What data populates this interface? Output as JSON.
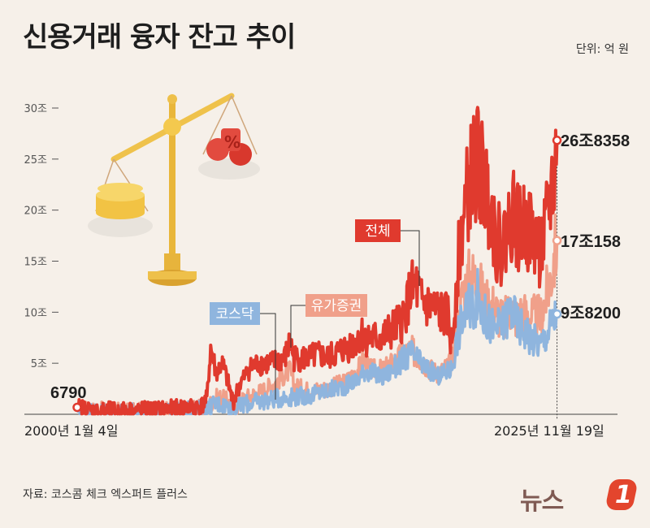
{
  "title": "신용거래 융자 잔고 추이",
  "unit": "단위: 억 원",
  "source": "자료: 코스콤 체크 엑스퍼트 플러스",
  "logo": {
    "text": "뉴스",
    "badge": "1"
  },
  "colors": {
    "total": "#e03a2e",
    "securities": "#f0a08a",
    "kosdaq": "#8fb5de",
    "background": "#f6f0e9"
  },
  "chart_data": {
    "type": "line",
    "x_start_label": "2000년 1월 4일",
    "x_end_label": "2025년 11월 19일",
    "xlim": [
      2000.0,
      2025.9
    ],
    "ylim": [
      0,
      30
    ],
    "y_ticks": [
      {
        "value": 5,
        "label": "5조"
      },
      {
        "value": 10,
        "label": "10조"
      },
      {
        "value": 15,
        "label": "15조"
      },
      {
        "value": 20,
        "label": "20조"
      },
      {
        "value": 25,
        "label": "25조"
      },
      {
        "value": 30,
        "label": "30조"
      }
    ],
    "start_annotation": {
      "value": 0.679,
      "label": "6790"
    },
    "series": [
      {
        "name": "유가증권",
        "key": "securities",
        "end_label": "17조158",
        "points": [
          [
            2000.0,
            0.4
          ],
          [
            2003.0,
            0.2
          ],
          [
            2005.0,
            0.3
          ],
          [
            2007.0,
            0.6
          ],
          [
            2007.3,
            1.3
          ],
          [
            2007.6,
            1.7
          ],
          [
            2008.0,
            1.4
          ],
          [
            2008.5,
            0.6
          ],
          [
            2009.0,
            1.5
          ],
          [
            2010.0,
            2.3
          ],
          [
            2011.0,
            3.5
          ],
          [
            2011.5,
            4.3
          ],
          [
            2011.7,
            2.8
          ],
          [
            2012.5,
            2.3
          ],
          [
            2013.5,
            2.5
          ],
          [
            2014.5,
            3.2
          ],
          [
            2015.2,
            4.5
          ],
          [
            2015.5,
            5.5
          ],
          [
            2015.7,
            4.4
          ],
          [
            2016.5,
            4.3
          ],
          [
            2017.5,
            5.7
          ],
          [
            2018.0,
            6.3
          ],
          [
            2018.5,
            5.5
          ],
          [
            2019.0,
            4.5
          ],
          [
            2019.5,
            4.0
          ],
          [
            2020.2,
            5.0
          ],
          [
            2020.5,
            8.0
          ],
          [
            2020.8,
            12.0
          ],
          [
            2021.2,
            13.5
          ],
          [
            2021.6,
            13.0
          ],
          [
            2022.0,
            11.0
          ],
          [
            2022.5,
            10.5
          ],
          [
            2023.0,
            9.0
          ],
          [
            2023.4,
            10.5
          ],
          [
            2023.7,
            9.5
          ],
          [
            2024.0,
            10.0
          ],
          [
            2024.5,
            9.5
          ],
          [
            2025.0,
            9.5
          ],
          [
            2025.5,
            13.0
          ],
          [
            2025.88,
            17.0158
          ]
        ]
      },
      {
        "name": "코스닥",
        "key": "kosdaq",
        "end_label": "9조8200",
        "points": [
          [
            2000.0,
            0.3
          ],
          [
            2003.0,
            0.15
          ],
          [
            2005.0,
            0.2
          ],
          [
            2007.0,
            0.5
          ],
          [
            2007.3,
            0.9
          ],
          [
            2007.6,
            1.0
          ],
          [
            2008.0,
            0.9
          ],
          [
            2008.5,
            0.4
          ],
          [
            2009.0,
            1.0
          ],
          [
            2010.0,
            1.3
          ],
          [
            2011.0,
            1.6
          ],
          [
            2011.5,
            1.7
          ],
          [
            2012.5,
            1.8
          ],
          [
            2013.5,
            2.3
          ],
          [
            2014.5,
            2.8
          ],
          [
            2015.2,
            3.5
          ],
          [
            2015.5,
            4.3
          ],
          [
            2016.0,
            4.0
          ],
          [
            2016.5,
            3.6
          ],
          [
            2017.5,
            5.2
          ],
          [
            2018.0,
            6.0
          ],
          [
            2018.5,
            5.0
          ],
          [
            2019.0,
            4.3
          ],
          [
            2019.5,
            3.7
          ],
          [
            2020.2,
            4.5
          ],
          [
            2020.5,
            7.5
          ],
          [
            2020.8,
            9.5
          ],
          [
            2021.2,
            10.5
          ],
          [
            2021.6,
            11.5
          ],
          [
            2022.0,
            9.5
          ],
          [
            2022.5,
            8.3
          ],
          [
            2023.0,
            8.8
          ],
          [
            2023.4,
            10.5
          ],
          [
            2023.7,
            9.0
          ],
          [
            2024.0,
            8.5
          ],
          [
            2024.5,
            7.5
          ],
          [
            2025.0,
            6.8
          ],
          [
            2025.5,
            8.5
          ],
          [
            2025.88,
            9.82
          ]
        ]
      },
      {
        "name": "전체",
        "key": "total",
        "end_label": "26조8358",
        "points": [
          [
            2000.0,
            0.679
          ],
          [
            2001.0,
            0.3
          ],
          [
            2003.0,
            0.35
          ],
          [
            2005.0,
            0.5
          ],
          [
            2006.7,
            0.8
          ],
          [
            2007.0,
            1.5
          ],
          [
            2007.2,
            6.5
          ],
          [
            2007.5,
            4.0
          ],
          [
            2007.8,
            5.0
          ],
          [
            2008.0,
            4.0
          ],
          [
            2008.4,
            1.2
          ],
          [
            2008.8,
            3.0
          ],
          [
            2009.3,
            4.5
          ],
          [
            2009.8,
            5.0
          ],
          [
            2010.5,
            5.0
          ],
          [
            2011.2,
            5.5
          ],
          [
            2011.5,
            7.0
          ],
          [
            2011.7,
            5.5
          ],
          [
            2012.5,
            5.5
          ],
          [
            2013.0,
            5.8
          ],
          [
            2013.5,
            5.5
          ],
          [
            2014.0,
            6.0
          ],
          [
            2014.5,
            6.5
          ],
          [
            2015.0,
            7.0
          ],
          [
            2015.3,
            8.0
          ],
          [
            2015.5,
            7.5
          ],
          [
            2016.0,
            7.4
          ],
          [
            2016.5,
            7.5
          ],
          [
            2017.5,
            9.0
          ],
          [
            2018.0,
            12.0
          ],
          [
            2018.3,
            12.5
          ],
          [
            2018.5,
            11.0
          ],
          [
            2019.0,
            10.5
          ],
          [
            2019.5,
            10.0
          ],
          [
            2020.0,
            9.5
          ],
          [
            2020.2,
            6.5
          ],
          [
            2020.5,
            14.0
          ],
          [
            2020.8,
            19.0
          ],
          [
            2021.2,
            23.0
          ],
          [
            2021.6,
            25.0
          ],
          [
            2021.8,
            23.5
          ],
          [
            2022.0,
            22.0
          ],
          [
            2022.3,
            21.0
          ],
          [
            2022.6,
            17.0
          ],
          [
            2022.9,
            16.5
          ],
          [
            2023.2,
            18.0
          ],
          [
            2023.5,
            20.0
          ],
          [
            2023.8,
            18.0
          ],
          [
            2024.2,
            18.5
          ],
          [
            2024.6,
            17.5
          ],
          [
            2024.9,
            16.0
          ],
          [
            2025.2,
            17.0
          ],
          [
            2025.5,
            21.0
          ],
          [
            2025.7,
            23.0
          ],
          [
            2025.88,
            26.8358
          ]
        ]
      }
    ],
    "series_tags": {
      "total": "전체",
      "securities": "유가증권",
      "kosdaq": "코스닥"
    }
  }
}
